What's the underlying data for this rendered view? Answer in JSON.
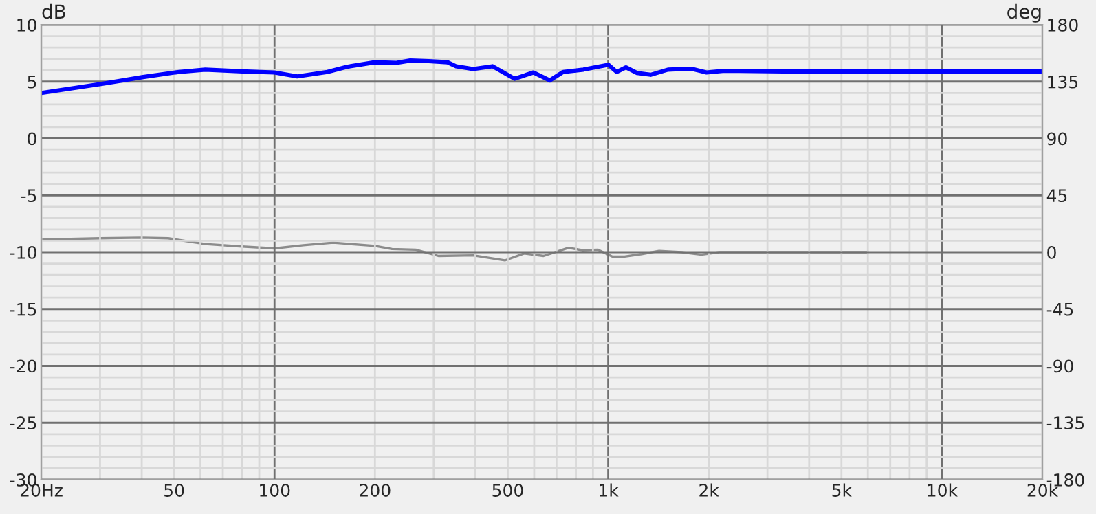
{
  "chart_data": {
    "type": "line",
    "ylabel": "dB",
    "y2label": "deg",
    "log": "x",
    "grid": true,
    "legend": false,
    "marker": "none",
    "line_style": "solid",
    "xlim": [
      20,
      20000
    ],
    "ylim": [
      -30,
      10
    ],
    "y2lim": [
      -180,
      180
    ],
    "xticks": [
      {
        "value": 20,
        "label": "20Hz"
      },
      {
        "value": 30,
        "label": null
      },
      {
        "value": 40,
        "label": null
      },
      50,
      {
        "value": 60,
        "label": null
      },
      {
        "value": 70,
        "label": null
      },
      {
        "value": 80,
        "label": null
      },
      {
        "value": 90,
        "label": null
      },
      {
        "value": 100,
        "label": "100"
      },
      200,
      {
        "value": 300,
        "label": null
      },
      {
        "value": 400,
        "label": null
      },
      500,
      {
        "value": 600,
        "label": null
      },
      {
        "value": 700,
        "label": null
      },
      {
        "value": 800,
        "label": null
      },
      {
        "value": 900,
        "label": null
      },
      {
        "value": 1000,
        "label": "1k"
      },
      {
        "value": 2000,
        "label": "2k"
      },
      {
        "value": 3000,
        "label": null
      },
      {
        "value": 4000,
        "label": null
      },
      {
        "value": 5000,
        "label": "5k"
      },
      {
        "value": 6000,
        "label": null
      },
      {
        "value": 7000,
        "label": null
      },
      {
        "value": 8000,
        "label": null
      },
      {
        "value": 9000,
        "label": null
      },
      {
        "value": 10000,
        "label": "10k"
      },
      {
        "value": 20000,
        "label": "20k"
      }
    ],
    "yticks": [
      -30,
      {
        "value": -29,
        "label": null
      },
      {
        "value": -28,
        "label": null
      },
      {
        "value": -27,
        "label": null
      },
      {
        "value": -26,
        "label": null
      },
      -25,
      {
        "value": -24,
        "label": null
      },
      {
        "value": -23,
        "label": null
      },
      {
        "value": -22,
        "label": null
      },
      {
        "value": -21,
        "label": null
      },
      -20,
      {
        "value": -19,
        "label": null
      },
      {
        "value": -18,
        "label": null
      },
      {
        "value": -17,
        "label": null
      },
      {
        "value": -16,
        "label": null
      },
      -15,
      {
        "value": -14,
        "label": null
      },
      {
        "value": -13,
        "label": null
      },
      {
        "value": -12,
        "label": null
      },
      {
        "value": -11,
        "label": null
      },
      -10,
      {
        "value": -9,
        "label": null
      },
      {
        "value": -8,
        "label": null
      },
      {
        "value": -7,
        "label": null
      },
      {
        "value": -6,
        "label": null
      },
      -5,
      {
        "value": -4,
        "label": null
      },
      {
        "value": -3,
        "label": null
      },
      {
        "value": -2,
        "label": null
      },
      {
        "value": -1,
        "label": null
      },
      0,
      {
        "value": 1,
        "label": null
      },
      {
        "value": 2,
        "label": null
      },
      {
        "value": 3,
        "label": null
      },
      {
        "value": 4,
        "label": null
      },
      5,
      {
        "value": 6,
        "label": null
      },
      {
        "value": 7,
        "label": null
      },
      {
        "value": 8,
        "label": null
      },
      {
        "value": 9,
        "label": null
      },
      10
    ],
    "y2ticks": [
      -180,
      -135,
      -90,
      -45,
      0,
      45,
      90,
      135,
      180
    ],
    "series": [
      {
        "color": "#0000ff",
        "x": [
          20,
          30.4,
          40.4,
          51.7,
          62,
          80,
          100,
          117,
          144,
          165,
          200,
          232,
          255,
          290,
          330,
          350,
          394,
          450,
          524,
          597,
          668,
          733,
          843,
          990,
          1000,
          1060,
          1130,
          1220,
          1340,
          1510,
          1660,
          1790,
          1970,
          2230,
          3340,
          6200,
          11800,
          20000
        ],
        "values": [
          4.0,
          4.8,
          5.4,
          5.85,
          6.05,
          5.9,
          5.8,
          5.45,
          5.85,
          6.3,
          6.7,
          6.65,
          6.85,
          6.8,
          6.7,
          6.35,
          6.1,
          6.35,
          5.25,
          5.8,
          5.1,
          5.85,
          6.05,
          6.45,
          6.5,
          5.85,
          6.25,
          5.75,
          5.6,
          6.05,
          6.1,
          6.1,
          5.8,
          5.95,
          5.9,
          5.9,
          5.9,
          5.9
        ]
      },
      {
        "color": "#8c8c8c",
        "axis": "y2",
        "x": [
          20,
          30,
          40,
          48,
          62,
          80,
          100,
          122,
          150,
          200,
          225,
          265,
          310,
          394,
          490,
          560,
          640,
          760,
          840,
          930,
          1030,
          1120,
          1260,
          1420,
          1660,
          1900,
          2150,
          6000
        ],
        "values": [
          10,
          11,
          11.5,
          11,
          6.5,
          4.5,
          3,
          5.5,
          7.5,
          5,
          2.5,
          2,
          -3,
          -2.5,
          -6.5,
          -1,
          -3,
          3.5,
          1.5,
          2,
          -3.5,
          -3.5,
          -1.5,
          1,
          0,
          -2,
          0,
          0
        ]
      }
    ]
  }
}
